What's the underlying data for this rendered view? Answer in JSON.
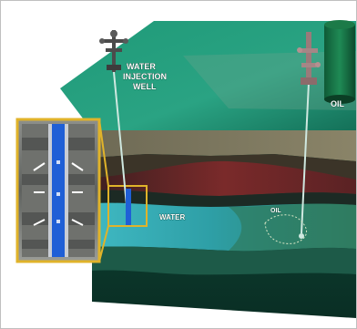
{
  "labels": {
    "injection_well_line1": "WATER",
    "injection_well_line2": "INJECTION",
    "injection_well_line3": "WELL",
    "oil_tank": "OIL",
    "water_zone": "WATER",
    "oil_zone": "OIL"
  },
  "colors": {
    "surface": "#1f9a78",
    "front_face": "#123a2e",
    "water_layer": "#35b3b8",
    "oil_layer": "#3c8a6c",
    "red_layer": "#7a2a2a",
    "inset_border": "#e0b32a",
    "wellbore": "#1f5fd6"
  },
  "icons": [
    "pump-jack-icon",
    "wellhead-icon",
    "oil-tank-icon",
    "arrow-icon"
  ]
}
